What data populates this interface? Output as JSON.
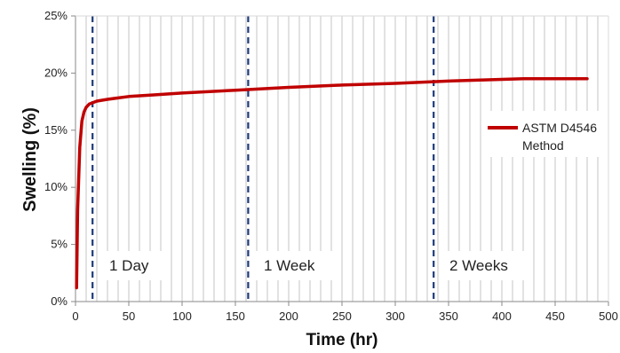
{
  "chart_data": {
    "type": "line",
    "xlabel": "Time (hr)",
    "ylabel": "Swelling (%)",
    "xlim": [
      0,
      500
    ],
    "ylim": [
      0,
      25
    ],
    "x_ticks": [
      "0",
      "50",
      "100",
      "150",
      "200",
      "250",
      "300",
      "350",
      "400",
      "450",
      "500"
    ],
    "y_ticks": [
      "0%",
      "5%",
      "10%",
      "15%",
      "20%",
      "25%"
    ],
    "grid": "vertical",
    "legend_position": "right",
    "series": [
      {
        "name": "ASTM D4546 Method",
        "color": "#c00000",
        "points": [
          [
            1,
            1.2
          ],
          [
            2,
            8.0
          ],
          [
            4,
            13.5
          ],
          [
            6,
            15.8
          ],
          [
            8,
            16.6
          ],
          [
            10,
            17.0
          ],
          [
            13,
            17.3
          ],
          [
            20,
            17.55
          ],
          [
            30,
            17.7
          ],
          [
            50,
            17.95
          ],
          [
            75,
            18.1
          ],
          [
            100,
            18.25
          ],
          [
            150,
            18.5
          ],
          [
            200,
            18.75
          ],
          [
            250,
            18.95
          ],
          [
            300,
            19.1
          ],
          [
            350,
            19.3
          ],
          [
            400,
            19.45
          ],
          [
            420,
            19.5
          ],
          [
            480,
            19.5
          ]
        ]
      }
    ],
    "annotations": [
      {
        "label": "1 Day",
        "x": 16
      },
      {
        "label": "1 Week",
        "x": 162
      },
      {
        "label": "2 Weeks",
        "x": 336
      }
    ]
  }
}
